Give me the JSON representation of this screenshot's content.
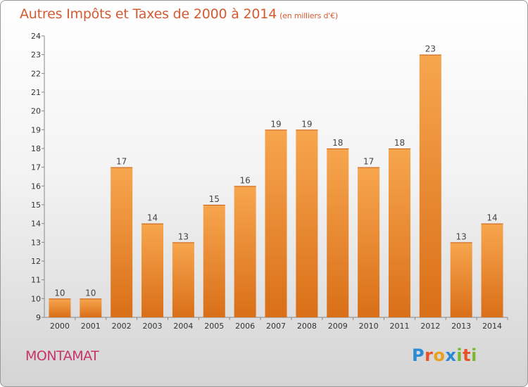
{
  "title": "Autres Impôts et Taxes de 2000 à 2014",
  "title_unit": "(en milliers d'€)",
  "commune": "MONTAMAT",
  "logo": {
    "text": "Proxiti",
    "letters": [
      {
        "char": "P",
        "color": "#2a8bd4"
      },
      {
        "char": "r",
        "color": "#e8522a"
      },
      {
        "char": "o",
        "color": "#e8a020"
      },
      {
        "char": "x",
        "color": "#2a8bd4"
      },
      {
        "char": "i",
        "color": "#7ab82e"
      },
      {
        "char": "t",
        "color": "#e8522a"
      },
      {
        "char": "i",
        "color": "#7ab82e"
      }
    ]
  },
  "chart_data": {
    "type": "bar",
    "title": "Autres Impôts et Taxes de 2000 à 2014",
    "xlabel": "",
    "ylabel": "",
    "categories": [
      "2000",
      "2001",
      "2002",
      "2003",
      "2004",
      "2005",
      "2006",
      "2007",
      "2008",
      "2009",
      "2010",
      "2011",
      "2012",
      "2013",
      "2014"
    ],
    "values": [
      10,
      10,
      17,
      14,
      13,
      15,
      16,
      19,
      19,
      18,
      17,
      18,
      23,
      13,
      14
    ],
    "ylim": [
      9,
      24
    ],
    "yticks": [
      9,
      10,
      11,
      12,
      13,
      14,
      15,
      16,
      17,
      18,
      19,
      20,
      21,
      22,
      23,
      24
    ],
    "grid": false,
    "bar_color": "#e8832a"
  }
}
